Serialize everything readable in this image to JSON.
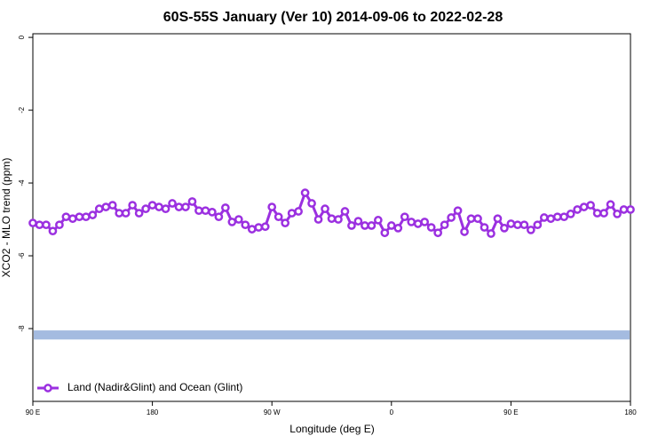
{
  "chart_data": {
    "type": "line",
    "title": "60S-55S January (Ver 10)   2014-09-06 to 2022-02-28",
    "xlabel": "Longitude (deg E)",
    "ylabel": "XCO2 - MLO trend (ppm)",
    "xlim": [
      90,
      540
    ],
    "ylim": [
      -10,
      0.1
    ],
    "xticks": [
      {
        "value": 90,
        "label": "90 E"
      },
      180,
      {
        "value": 270,
        "label": "90 W"
      },
      {
        "value": 360,
        "label": "0"
      },
      {
        "value": 450,
        "label": "90 E"
      },
      {
        "value": 540,
        "label": "180"
      }
    ],
    "yticks": [
      0,
      -2,
      -4,
      -6,
      -8
    ],
    "legend": "bottom-left",
    "band": [
      -8.3,
      -8.05
    ],
    "band_color": "#a4bbe0",
    "x": [
      90,
      95,
      100,
      105,
      110,
      115,
      120,
      125,
      130,
      135,
      140,
      145,
      150,
      155,
      160,
      165,
      170,
      175,
      180,
      185,
      190,
      195,
      200,
      205,
      210,
      215,
      220,
      225,
      230,
      235,
      240,
      245,
      250,
      255,
      260,
      265,
      270,
      275,
      280,
      285,
      290,
      295,
      300,
      305,
      310,
      315,
      320,
      325,
      330,
      335,
      340,
      345,
      350,
      355,
      360,
      365,
      370,
      375,
      380,
      385,
      390,
      395,
      400,
      405,
      410,
      415,
      420,
      425,
      430,
      435,
      440,
      445,
      450,
      455,
      460,
      465,
      470,
      475,
      480,
      485,
      490,
      495,
      500,
      505,
      510,
      515,
      520,
      525,
      530,
      535,
      540
    ],
    "series": [
      {
        "name": "Land (Nadir&Glint) and Ocean (Glint)",
        "color": "#9b30e0",
        "values": [
          -5.1,
          -5.15,
          -5.15,
          -5.32,
          -5.15,
          -4.93,
          -4.98,
          -4.93,
          -4.93,
          -4.88,
          -4.71,
          -4.66,
          -4.61,
          -4.83,
          -4.83,
          -4.61,
          -4.83,
          -4.71,
          -4.61,
          -4.66,
          -4.71,
          -4.56,
          -4.66,
          -4.66,
          -4.51,
          -4.76,
          -4.76,
          -4.8,
          -4.93,
          -4.68,
          -5.07,
          -5.0,
          -5.15,
          -5.27,
          -5.22,
          -5.2,
          -4.66,
          -4.93,
          -5.1,
          -4.83,
          -4.78,
          -4.27,
          -4.56,
          -5.0,
          -4.71,
          -4.98,
          -5.0,
          -4.78,
          -5.17,
          -5.05,
          -5.17,
          -5.17,
          -5.02,
          -5.37,
          -5.17,
          -5.24,
          -4.93,
          -5.07,
          -5.12,
          -5.07,
          -5.22,
          -5.37,
          -5.15,
          -4.95,
          -4.76,
          -5.34,
          -4.98,
          -4.98,
          -5.22,
          -5.39,
          -4.98,
          -5.24,
          -5.12,
          -5.15,
          -5.15,
          -5.29,
          -5.15,
          -4.95,
          -4.98,
          -4.93,
          -4.93,
          -4.85,
          -4.73,
          -4.66,
          -4.61,
          -4.83,
          -4.83,
          -4.59,
          -4.85,
          -4.73,
          -4.73
        ]
      }
    ]
  }
}
